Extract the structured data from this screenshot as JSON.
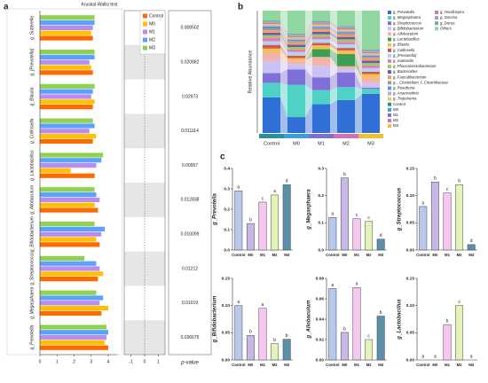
{
  "chart_data": [
    {
      "type": "grouped_hbar",
      "panel_label": "a",
      "title": "Kruskal-Wallis test",
      "categories": [
        "g_Sutterella",
        "g_[Prevotella]",
        "g_Blautia",
        "g_Collinsella",
        "g_Lactobacillus",
        "g_Allobaculum",
        "g_Bifidobacterium",
        "g_Streptococcus",
        "g_Megasphaera",
        "g_Prevotella"
      ],
      "series": [
        {
          "name": "Control",
          "color": "#ff6a00",
          "values": [
            3.1,
            3.1,
            3.1,
            3.1,
            3.2,
            3.4,
            3.5,
            3.4,
            3.6,
            4.0
          ]
        },
        {
          "name": "M0",
          "color": "#ffc000",
          "values": [
            3.0,
            3.0,
            3.2,
            3.3,
            1.8,
            3.2,
            3.3,
            3.7,
            4.0,
            3.8
          ]
        },
        {
          "name": "M1",
          "color": "#b98cf2",
          "values": [
            3.1,
            2.9,
            3.0,
            2.9,
            3.3,
            3.5,
            3.6,
            3.5,
            3.5,
            3.9
          ]
        },
        {
          "name": "M2",
          "color": "#5aa2ff",
          "values": [
            3.2,
            3.2,
            3.1,
            3.2,
            3.6,
            3.3,
            3.8,
            3.3,
            3.7,
            4.0
          ]
        },
        {
          "name": "M3",
          "color": "#92d050",
          "values": [
            3.2,
            3.2,
            3.2,
            3.1,
            3.7,
            3.2,
            3.2,
            2.6,
            3.3,
            3.9
          ]
        }
      ],
      "xlim": [
        0,
        4.5
      ],
      "xticks": [
        0,
        1,
        2,
        3,
        4
      ],
      "diff_xlim": [
        -1.5,
        1.5
      ],
      "diff_xticks": [
        -1,
        0,
        1
      ],
      "pvalues": [
        0.008502,
        0.020882,
        0.02973,
        0.011114,
        0.00957,
        0.012838,
        0.010099,
        0.01212,
        0.01019,
        0.036675
      ],
      "pvalue_label": "p-value",
      "legend": "top-right"
    },
    {
      "type": "stacked_bar",
      "panel_label": "b",
      "ylabel": "Relative Abundance",
      "categories": [
        "Control",
        "M0",
        "M1",
        "M2",
        "M3"
      ],
      "group_colors": [
        "#2a8fa0",
        "#3aa0d8",
        "#7b70d0",
        "#d070c0",
        "#f0c030"
      ],
      "ylim": [
        0,
        100
      ],
      "series": [
        {
          "name": "g_Prevotella",
          "color": "#2f6fd6",
          "values": [
            29,
            13,
            23.5,
            27,
            32
          ]
        },
        {
          "name": "g_Megasphaera",
          "color": "#4fd1c5",
          "values": [
            12,
            26.5,
            11.5,
            10.5,
            4
          ]
        },
        {
          "name": "g_Streptococcus",
          "color": "#7f6fd8",
          "values": [
            8,
            12.5,
            10.5,
            12,
            1
          ]
        },
        {
          "name": "g_Bifidobacterium",
          "color": "#c9c2f2",
          "values": [
            10,
            4.5,
            9.5,
            3,
            3.8
          ]
        },
        {
          "name": "g_Allobaculum",
          "color": "#f2b3a8",
          "values": [
            7,
            2.7,
            7.1,
            2,
            4.3
          ]
        },
        {
          "name": "g_Lactobacillus",
          "color": "#3f9e55",
          "values": [
            0,
            0,
            6.5,
            10,
            0
          ]
        },
        {
          "name": "g_Blautia",
          "color": "#f2c14e",
          "values": [
            3,
            2,
            3,
            3,
            3
          ]
        },
        {
          "name": "g_Collinsella",
          "color": "#d9534f",
          "values": [
            3,
            2,
            2,
            2,
            2
          ]
        },
        {
          "name": "g_[Prevotella]",
          "color": "#a9d8f0",
          "values": [
            3,
            3,
            3,
            3,
            3
          ]
        },
        {
          "name": "g_Sutterella",
          "color": "#e87ab8",
          "values": [
            3,
            2,
            2,
            2,
            2
          ]
        },
        {
          "name": "g_Phascolarctobacterium",
          "color": "#9bcf5a",
          "values": [
            2,
            2,
            2,
            2,
            2
          ]
        },
        {
          "name": "g_Bacteroides",
          "color": "#6b5bb0",
          "values": [
            2,
            2,
            2,
            2,
            2
          ]
        },
        {
          "name": "g_Faecalibacterium",
          "color": "#f39c6b",
          "values": [
            2,
            2,
            2,
            2,
            2
          ]
        },
        {
          "name": "g__Clostridium_f_Clostridiaceae",
          "color": "#9a9a9a",
          "values": [
            1.5,
            1,
            1,
            1,
            1
          ]
        },
        {
          "name": "g_Roseburia",
          "color": "#4e9ad0",
          "values": [
            1.5,
            1,
            1,
            1,
            1
          ]
        },
        {
          "name": "g_Anaerovibrio",
          "color": "#c8a0e0",
          "values": [
            1,
            1,
            1,
            1,
            1
          ]
        },
        {
          "name": "g_Treponema",
          "color": "#e0d060",
          "values": [
            1,
            1,
            1,
            1,
            1
          ]
        },
        {
          "name": "g_Oscillospira",
          "color": "#d08080",
          "values": [
            1,
            1,
            1,
            1,
            1
          ]
        },
        {
          "name": "g_Sarcina",
          "color": "#a0a0d0",
          "values": [
            1,
            1,
            1,
            1,
            1
          ]
        },
        {
          "name": "g_Dorea",
          "color": "#70b0a0",
          "values": [
            1,
            1,
            1,
            1,
            1
          ]
        },
        {
          "name": "Others",
          "color": "#8fd6a0",
          "values": [
            8,
            18.8,
            8.4,
            12.5,
            31.9
          ]
        }
      ]
    },
    {
      "type": "bar",
      "panel_label": "c",
      "ylabel": "g_Prevotella",
      "categories": [
        "Control",
        "M0",
        "M1",
        "M2",
        "M3"
      ],
      "values": [
        0.29,
        0.13,
        0.235,
        0.27,
        0.32
      ],
      "letters": [
        "a",
        "b",
        "c",
        "a",
        "d"
      ],
      "colors": [
        "#b8c8ec",
        "#c8b8e8",
        "#f6c8f0",
        "#e4f4b8",
        "#5a90aa"
      ],
      "ylim": [
        0,
        0.4
      ],
      "yticks": [
        {
          "value": 0,
          "label": "0.0"
        },
        0.1,
        0.2,
        0.3,
        0.4
      ]
    },
    {
      "type": "bar",
      "ylabel": "g_Megasphaera",
      "categories": [
        "Control",
        "M0",
        "M1",
        "M2",
        "M3"
      ],
      "values": [
        0.12,
        0.265,
        0.115,
        0.105,
        0.04
      ],
      "letters": [
        "a",
        "b",
        "c",
        "c",
        "d"
      ],
      "colors": [
        "#b8c8ec",
        "#c8b8e8",
        "#f6c8f0",
        "#e4f4b8",
        "#5a90aa"
      ],
      "ylim": [
        0,
        0.3
      ],
      "yticks": [
        {
          "value": 0,
          "label": "0.0"
        },
        0.1,
        0.2,
        0.3
      ]
    },
    {
      "type": "bar",
      "ylabel": "g_Streptococcus",
      "categories": [
        "Control",
        "M0",
        "M1",
        "M2",
        "M3"
      ],
      "values": [
        0.08,
        0.125,
        0.105,
        0.12,
        0.01
      ],
      "letters": [
        "a",
        "b",
        "c",
        "b",
        "d"
      ],
      "colors": [
        "#b8c8ec",
        "#c8b8e8",
        "#f6c8f0",
        "#e4f4b8",
        "#5a90aa"
      ],
      "ylim": [
        0,
        0.15
      ],
      "yticks": [
        {
          "value": 0,
          "label": "0.00"
        },
        0.05,
        {
          "value": 0.1,
          "label": "0.10"
        },
        0.15
      ]
    },
    {
      "type": "bar",
      "ylabel": "g_Bifidobacterium",
      "categories": [
        "Control",
        "M0",
        "M1",
        "M2",
        "M3"
      ],
      "values": [
        0.1,
        0.045,
        0.095,
        0.03,
        0.038
      ],
      "letters": [
        "a",
        "b",
        "a",
        "b",
        "b"
      ],
      "colors": [
        "#b8c8ec",
        "#c8b8e8",
        "#f6c8f0",
        "#e4f4b8",
        "#5a90aa"
      ],
      "ylim": [
        0,
        0.15
      ],
      "yticks": [
        {
          "value": 0,
          "label": "0.00"
        },
        0.05,
        {
          "value": 0.1,
          "label": "0.10"
        },
        0.15
      ]
    },
    {
      "type": "bar",
      "ylabel": "g_Allobaculum",
      "categories": [
        "Control",
        "M0",
        "M1",
        "M2",
        "M3"
      ],
      "values": [
        0.07,
        0.027,
        0.071,
        0.02,
        0.043
      ],
      "letters": [
        "a",
        "b",
        "a",
        "c",
        "b"
      ],
      "colors": [
        "#b8c8ec",
        "#c8b8e8",
        "#f6c8f0",
        "#e4f4b8",
        "#5a90aa"
      ],
      "ylim": [
        0,
        0.08
      ],
      "yticks": [
        {
          "value": 0,
          "label": "0.00"
        },
        0.02,
        0.04,
        0.06,
        0.08
      ]
    },
    {
      "type": "bar",
      "ylabel": "g_Lactobacillus",
      "categories": [
        "Control",
        "M0",
        "M1",
        "M2",
        "M3"
      ],
      "values": [
        0,
        0,
        0.065,
        0.1,
        0
      ],
      "letters": [
        "a",
        "a",
        "b",
        "c",
        "a"
      ],
      "colors": [
        "#b8c8ec",
        "#c8b8e8",
        "#f6c8f0",
        "#e4f4b8",
        "#5a90aa"
      ],
      "ylim": [
        0,
        0.15
      ],
      "yticks": [
        {
          "value": 0,
          "label": "0.00"
        },
        0.05,
        {
          "value": 0.1,
          "label": "0.10"
        },
        0.15
      ]
    }
  ]
}
